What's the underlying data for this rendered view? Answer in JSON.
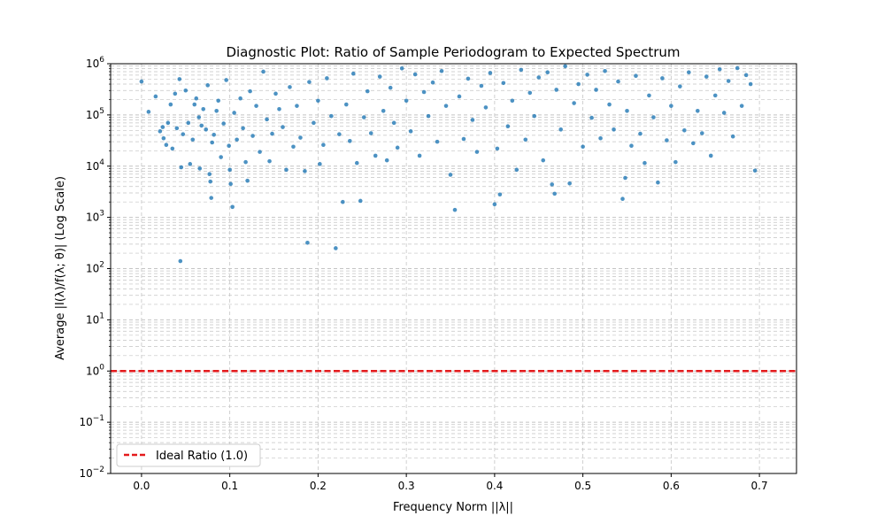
{
  "chart_data": {
    "type": "scatter",
    "title": "Diagnostic Plot: Ratio of Sample Periodogram to Expected Spectrum",
    "xlabel": "Frequency Norm ||λ||",
    "ylabel": "Average |I(λ)/f(λ; θ)| (Log Scale)",
    "x_ticks": [
      0.0,
      0.1,
      0.2,
      0.3,
      0.4,
      0.5,
      0.6,
      0.7
    ],
    "x_tick_labels": [
      "0.0",
      "0.1",
      "0.2",
      "0.3",
      "0.4",
      "0.5",
      "0.6",
      "0.7"
    ],
    "y_tick_labels": [
      {
        "base": "10",
        "exp": "−2",
        "value": 0.01
      },
      {
        "base": "10",
        "exp": "−1",
        "value": 0.1
      },
      {
        "base": "10",
        "exp": "0",
        "value": 1
      },
      {
        "base": "10",
        "exp": "1",
        "value": 10
      },
      {
        "base": "10",
        "exp": "2",
        "value": 100
      },
      {
        "base": "10",
        "exp": "3",
        "value": 1000
      },
      {
        "base": "10",
        "exp": "4",
        "value": 10000
      },
      {
        "base": "10",
        "exp": "5",
        "value": 100000
      },
      {
        "base": "10",
        "exp": "6",
        "value": 1000000
      }
    ],
    "xlim": [
      -0.035,
      0.742
    ],
    "ylim": [
      0.01,
      1000000
    ],
    "yscale": "log",
    "grid": true,
    "grid_style": "dashed",
    "legend_placement": "lower-left",
    "series": [
      {
        "name": "Ideal Ratio (1.0)",
        "kind": "hline",
        "y": 1.0,
        "color": "#e41a1c"
      }
    ],
    "scatter_color": "#1f77b4",
    "scatter_points": [
      [
        0.0,
        450000
      ],
      [
        0.008,
        115000
      ],
      [
        0.016,
        230000
      ],
      [
        0.021,
        48000
      ],
      [
        0.024,
        58000
      ],
      [
        0.025,
        35000
      ],
      [
        0.028,
        26000
      ],
      [
        0.03,
        70000
      ],
      [
        0.033,
        160000
      ],
      [
        0.035,
        22000
      ],
      [
        0.038,
        260000
      ],
      [
        0.04,
        55000
      ],
      [
        0.043,
        500000
      ],
      [
        0.044,
        140
      ],
      [
        0.045,
        9500
      ],
      [
        0.047,
        42000
      ],
      [
        0.05,
        300000
      ],
      [
        0.053,
        70000
      ],
      [
        0.055,
        11000
      ],
      [
        0.058,
        33000
      ],
      [
        0.06,
        160000
      ],
      [
        0.062,
        210000
      ],
      [
        0.065,
        90000
      ],
      [
        0.066,
        9000
      ],
      [
        0.068,
        62000
      ],
      [
        0.07,
        130000
      ],
      [
        0.073,
        52000
      ],
      [
        0.075,
        380000
      ],
      [
        0.077,
        7000
      ],
      [
        0.078,
        5000
      ],
      [
        0.079,
        2400
      ],
      [
        0.08,
        29000
      ],
      [
        0.082,
        41000
      ],
      [
        0.085,
        120000
      ],
      [
        0.087,
        190000
      ],
      [
        0.09,
        15000
      ],
      [
        0.093,
        68000
      ],
      [
        0.096,
        480000
      ],
      [
        0.099,
        25000
      ],
      [
        0.1,
        8500
      ],
      [
        0.101,
        4500
      ],
      [
        0.103,
        1600
      ],
      [
        0.105,
        110000
      ],
      [
        0.108,
        33000
      ],
      [
        0.112,
        210000
      ],
      [
        0.115,
        55000
      ],
      [
        0.118,
        12000
      ],
      [
        0.12,
        5200
      ],
      [
        0.123,
        290000
      ],
      [
        0.126,
        39000
      ],
      [
        0.13,
        150000
      ],
      [
        0.134,
        19000
      ],
      [
        0.138,
        700000
      ],
      [
        0.142,
        82000
      ],
      [
        0.145,
        12500
      ],
      [
        0.148,
        43000
      ],
      [
        0.152,
        260000
      ],
      [
        0.156,
        130000
      ],
      [
        0.16,
        58000
      ],
      [
        0.164,
        8500
      ],
      [
        0.168,
        350000
      ],
      [
        0.172,
        24000
      ],
      [
        0.176,
        150000
      ],
      [
        0.18,
        36000
      ],
      [
        0.185,
        8000
      ],
      [
        0.188,
        320
      ],
      [
        0.19,
        440000
      ],
      [
        0.195,
        70000
      ],
      [
        0.2,
        190000
      ],
      [
        0.202,
        11000
      ],
      [
        0.206,
        26000
      ],
      [
        0.21,
        520000
      ],
      [
        0.215,
        95000
      ],
      [
        0.22,
        250
      ],
      [
        0.224,
        42000
      ],
      [
        0.228,
        2000
      ],
      [
        0.232,
        160000
      ],
      [
        0.236,
        31000
      ],
      [
        0.24,
        640000
      ],
      [
        0.244,
        11500
      ],
      [
        0.248,
        2100
      ],
      [
        0.252,
        90000
      ],
      [
        0.256,
        290000
      ],
      [
        0.26,
        44000
      ],
      [
        0.265,
        16000
      ],
      [
        0.27,
        560000
      ],
      [
        0.274,
        120000
      ],
      [
        0.278,
        13000
      ],
      [
        0.282,
        340000
      ],
      [
        0.286,
        70000
      ],
      [
        0.29,
        23000
      ],
      [
        0.295,
        810000
      ],
      [
        0.3,
        190000
      ],
      [
        0.305,
        48000
      ],
      [
        0.31,
        620000
      ],
      [
        0.315,
        16000
      ],
      [
        0.32,
        280000
      ],
      [
        0.325,
        95000
      ],
      [
        0.33,
        430000
      ],
      [
        0.335,
        30000
      ],
      [
        0.34,
        720000
      ],
      [
        0.345,
        150000
      ],
      [
        0.35,
        6800
      ],
      [
        0.355,
        1400
      ],
      [
        0.36,
        230000
      ],
      [
        0.365,
        34000
      ],
      [
        0.37,
        510000
      ],
      [
        0.375,
        80000
      ],
      [
        0.38,
        19000
      ],
      [
        0.385,
        370000
      ],
      [
        0.39,
        140000
      ],
      [
        0.395,
        660000
      ],
      [
        0.4,
        1800
      ],
      [
        0.403,
        22000
      ],
      [
        0.406,
        2800
      ],
      [
        0.41,
        420000
      ],
      [
        0.415,
        60000
      ],
      [
        0.42,
        190000
      ],
      [
        0.425,
        8500
      ],
      [
        0.43,
        760000
      ],
      [
        0.435,
        33000
      ],
      [
        0.44,
        270000
      ],
      [
        0.445,
        95000
      ],
      [
        0.45,
        540000
      ],
      [
        0.455,
        13000
      ],
      [
        0.46,
        680000
      ],
      [
        0.465,
        4400
      ],
      [
        0.468,
        2900
      ],
      [
        0.47,
        310000
      ],
      [
        0.475,
        52000
      ],
      [
        0.48,
        890000
      ],
      [
        0.485,
        4600
      ],
      [
        0.49,
        170000
      ],
      [
        0.495,
        400000
      ],
      [
        0.5,
        24000
      ],
      [
        0.505,
        610000
      ],
      [
        0.51,
        88000
      ],
      [
        0.515,
        310000
      ],
      [
        0.52,
        35000
      ],
      [
        0.525,
        720000
      ],
      [
        0.53,
        160000
      ],
      [
        0.535,
        52000
      ],
      [
        0.54,
        450000
      ],
      [
        0.545,
        2300
      ],
      [
        0.548,
        5900
      ],
      [
        0.55,
        120000
      ],
      [
        0.555,
        25000
      ],
      [
        0.56,
        580000
      ],
      [
        0.565,
        43000
      ],
      [
        0.57,
        11500
      ],
      [
        0.575,
        240000
      ],
      [
        0.58,
        90000
      ],
      [
        0.585,
        4800
      ],
      [
        0.59,
        520000
      ],
      [
        0.595,
        32000
      ],
      [
        0.6,
        150000
      ],
      [
        0.605,
        12000
      ],
      [
        0.61,
        360000
      ],
      [
        0.615,
        50000
      ],
      [
        0.62,
        680000
      ],
      [
        0.625,
        28000
      ],
      [
        0.63,
        120000
      ],
      [
        0.635,
        44000
      ],
      [
        0.64,
        560000
      ],
      [
        0.645,
        16000
      ],
      [
        0.65,
        240000
      ],
      [
        0.655,
        780000
      ],
      [
        0.66,
        110000
      ],
      [
        0.665,
        460000
      ],
      [
        0.67,
        38000
      ],
      [
        0.675,
        820000
      ],
      [
        0.68,
        150000
      ],
      [
        0.685,
        600000
      ],
      [
        0.69,
        400000
      ],
      [
        0.695,
        8200
      ]
    ]
  }
}
